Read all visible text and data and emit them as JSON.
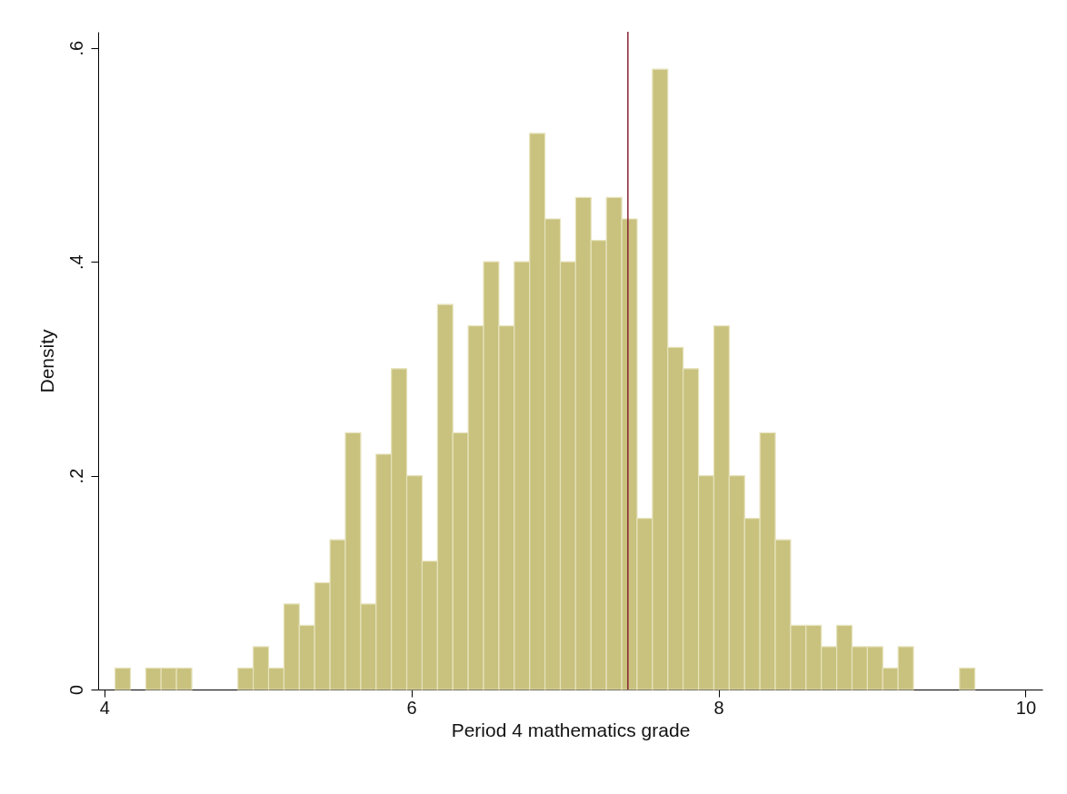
{
  "chart_data": {
    "type": "histogram",
    "xlabel": "Period 4 mathematics grade",
    "ylabel": "Density",
    "bins": [
      4.07,
      4.17,
      4.27,
      4.37,
      4.47,
      4.57,
      4.67,
      4.77,
      4.87,
      4.97,
      5.07,
      5.17,
      5.27,
      5.37,
      5.47,
      5.57,
      5.67,
      5.77,
      5.87,
      5.97,
      6.07,
      6.17,
      6.27,
      6.37,
      6.47,
      6.57,
      6.67,
      6.77,
      6.87,
      6.97,
      7.07,
      7.17,
      7.27,
      7.37,
      7.47,
      7.57,
      7.67,
      7.77,
      7.87,
      7.97,
      8.07,
      8.17,
      8.27,
      8.37,
      8.47,
      8.57,
      8.67,
      8.77,
      8.87,
      8.97,
      9.07,
      9.17,
      9.27,
      9.37,
      9.47,
      9.57,
      9.67
    ],
    "values": [
      0.02,
      0,
      0.02,
      0.02,
      0.02,
      0,
      0,
      0,
      0.02,
      0.04,
      0.02,
      0.08,
      0.06,
      0.1,
      0.14,
      0.24,
      0.08,
      0.22,
      0.3,
      0.2,
      0.12,
      0.36,
      0.24,
      0.34,
      0.4,
      0.34,
      0.4,
      0.52,
      0.44,
      0.4,
      0.46,
      0.42,
      0.46,
      0.44,
      0.16,
      0.58,
      0.32,
      0.3,
      0.2,
      0.34,
      0.2,
      0.16,
      0.24,
      0.14,
      0.06,
      0.06,
      0.04,
      0.06,
      0.04,
      0.04,
      0.02,
      0.04,
      0,
      0,
      0,
      0.02
    ],
    "color": "#c9c27e",
    "xlim": [
      3.96,
      10.11
    ],
    "xticks": [
      4,
      6,
      8,
      10
    ],
    "ylim": [
      0,
      0.615
    ],
    "yticks": [
      {
        "value": 0,
        "label": "0"
      },
      {
        "value": 0.2,
        "label": ".2"
      },
      {
        "value": 0.4,
        "label": ".4"
      },
      {
        "value": 0.6,
        "label": ".6"
      }
    ],
    "ref_lines": [
      {
        "axis": "x",
        "value": 7.41,
        "color": "#8b2232"
      }
    ],
    "grid": false
  }
}
